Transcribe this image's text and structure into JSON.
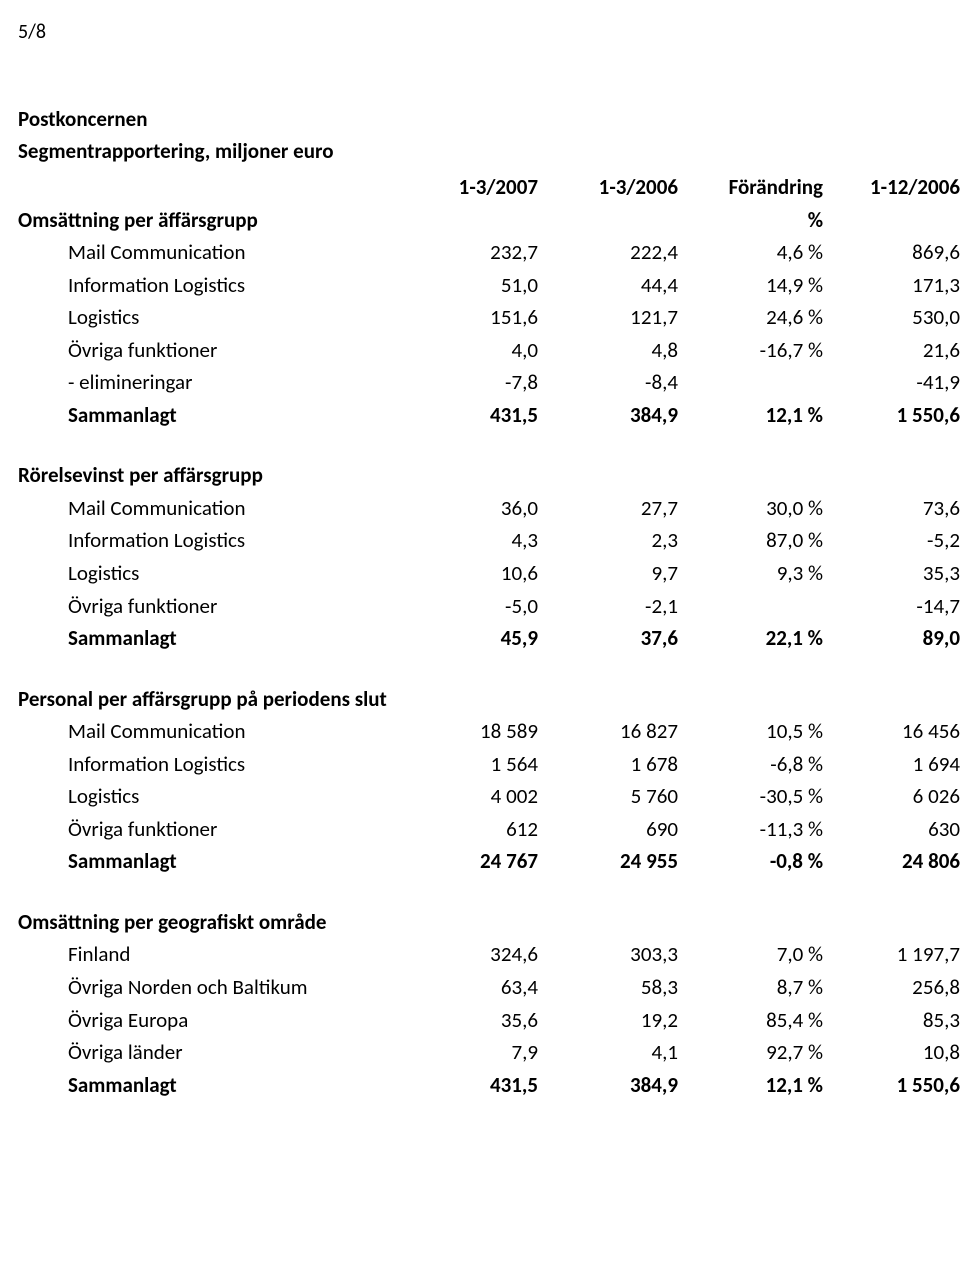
{
  "page_number": "5/8",
  "title_line1": "Postkoncernen",
  "title_line2": "Segmentrapportering, miljoner euro",
  "col_headers": {
    "c1": "1-3/2007",
    "c2": "1-3/2006",
    "c3_top": "Förändring",
    "c3_bottom": "%",
    "c4": "1-12/2006"
  },
  "sections": [
    {
      "title": "Omsättning per äffärsgrupp",
      "rows": [
        {
          "label": "Mail Communication",
          "c1": "232,7",
          "c2": "222,4",
          "c3": "4,6 %",
          "c4": "869,6"
        },
        {
          "label": "Information Logistics",
          "c1": "51,0",
          "c2": "44,4",
          "c3": "14,9 %",
          "c4": "171,3"
        },
        {
          "label": "Logistics",
          "c1": "151,6",
          "c2": "121,7",
          "c3": "24,6 %",
          "c4": "530,0"
        },
        {
          "label": "Övriga funktioner",
          "c1": "4,0",
          "c2": "4,8",
          "c3": "-16,7 %",
          "c4": "21,6"
        },
        {
          "label": "- elimineringar",
          "c1": "-7,8",
          "c2": "-8,4",
          "c3": "",
          "c4": "-41,9"
        },
        {
          "label": "Sammanlagt",
          "c1": "431,5",
          "c2": "384,9",
          "c3": "12,1 %",
          "c4": "1 550,6",
          "bold": true
        }
      ]
    },
    {
      "title": "Rörelsevinst per affärsgrupp",
      "rows": [
        {
          "label": "Mail Communication",
          "c1": "36,0",
          "c2": "27,7",
          "c3": "30,0 %",
          "c4": "73,6"
        },
        {
          "label": "Information Logistics",
          "c1": "4,3",
          "c2": "2,3",
          "c3": "87,0 %",
          "c4": "-5,2"
        },
        {
          "label": "Logistics",
          "c1": "10,6",
          "c2": "9,7",
          "c3": "9,3 %",
          "c4": "35,3"
        },
        {
          "label": "Övriga funktioner",
          "c1": "-5,0",
          "c2": "-2,1",
          "c3": "",
          "c4": "-14,7"
        },
        {
          "label": "Sammanlagt",
          "c1": "45,9",
          "c2": "37,6",
          "c3": "22,1 %",
          "c4": "89,0",
          "bold": true
        }
      ]
    },
    {
      "title": "Personal per affärsgrupp på periodens slut",
      "rows": [
        {
          "label": "Mail Communication",
          "c1": "18 589",
          "c2": "16 827",
          "c3": "10,5 %",
          "c4": "16 456"
        },
        {
          "label": "Information Logistics",
          "c1": "1 564",
          "c2": "1 678",
          "c3": "-6,8 %",
          "c4": "1 694"
        },
        {
          "label": "Logistics",
          "c1": "4 002",
          "c2": "5 760",
          "c3": "-30,5 %",
          "c4": "6 026"
        },
        {
          "label": "Övriga funktioner",
          "c1": "612",
          "c2": "690",
          "c3": "-11,3 %",
          "c4": "630"
        },
        {
          "label": "Sammanlagt",
          "c1": "24 767",
          "c2": "24 955",
          "c3": "-0,8 %",
          "c4": "24 806",
          "bold": true
        }
      ]
    },
    {
      "title": "Omsättning per geografiskt område",
      "rows": [
        {
          "label": "Finland",
          "c1": "324,6",
          "c2": "303,3",
          "c3": "7,0 %",
          "c4": "1 197,7"
        },
        {
          "label": "Övriga Norden och Baltikum",
          "c1": "63,4",
          "c2": "58,3",
          "c3": "8,7 %",
          "c4": "256,8"
        },
        {
          "label": "Övriga Europa",
          "c1": "35,6",
          "c2": "19,2",
          "c3": "85,4 %",
          "c4": "85,3"
        },
        {
          "label": "Övriga länder",
          "c1": "7,9",
          "c2": "4,1",
          "c3": "92,7 %",
          "c4": "10,8"
        },
        {
          "label": "Sammanlagt",
          "c1": "431,5",
          "c2": "384,9",
          "c3": "12,1 %",
          "c4": "1 550,6",
          "bold": true
        }
      ]
    }
  ]
}
